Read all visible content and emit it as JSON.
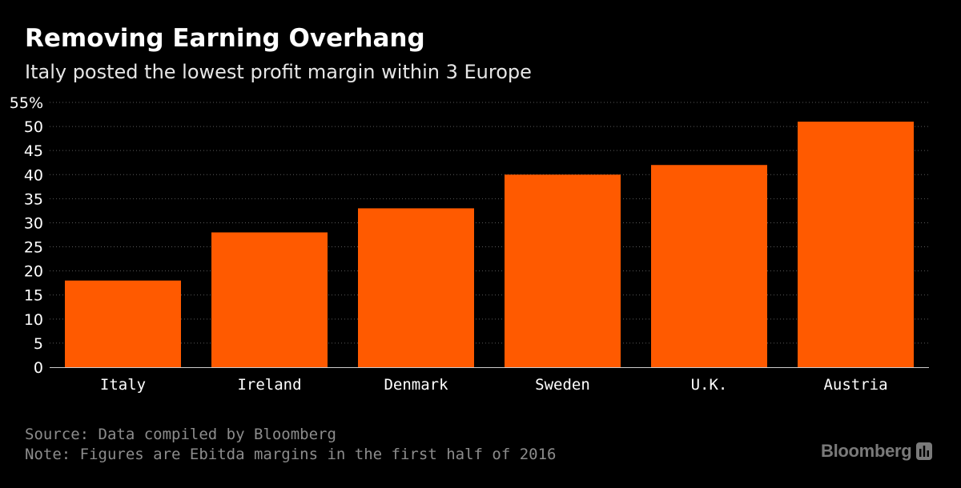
{
  "header": {
    "title": "Removing Earning Overhang",
    "subtitle": "Italy posted the lowest profit margin within 3 Europe"
  },
  "footer": {
    "source": "Source: Data compiled by Bloomberg",
    "note": "Note: Figures are Ebitda margins in the first half of 2016"
  },
  "brand": {
    "name": "Bloomberg",
    "icon": "bloomberg-terminal-icon"
  },
  "colors": {
    "background": "#000000",
    "bar": "#ff5a00",
    "grid": "#5a5a5a",
    "text": "#ffffff"
  },
  "chart_data": {
    "type": "bar",
    "categories": [
      "Italy",
      "Ireland",
      "Denmark",
      "Sweden",
      "U.K.",
      "Austria"
    ],
    "values": [
      18,
      28,
      33,
      40,
      42,
      51
    ],
    "title": "",
    "xlabel": "",
    "ylabel": "",
    "ylim": [
      0,
      55
    ],
    "yticks": [
      0,
      5,
      10,
      15,
      20,
      25,
      30,
      35,
      40,
      45,
      50,
      55
    ],
    "ytick_labels": [
      "0",
      "5",
      "10",
      "15",
      "20",
      "25",
      "30",
      "35",
      "40",
      "45",
      "50",
      "55%"
    ],
    "grid": true,
    "grid_style": "dotted",
    "legend": "none"
  }
}
